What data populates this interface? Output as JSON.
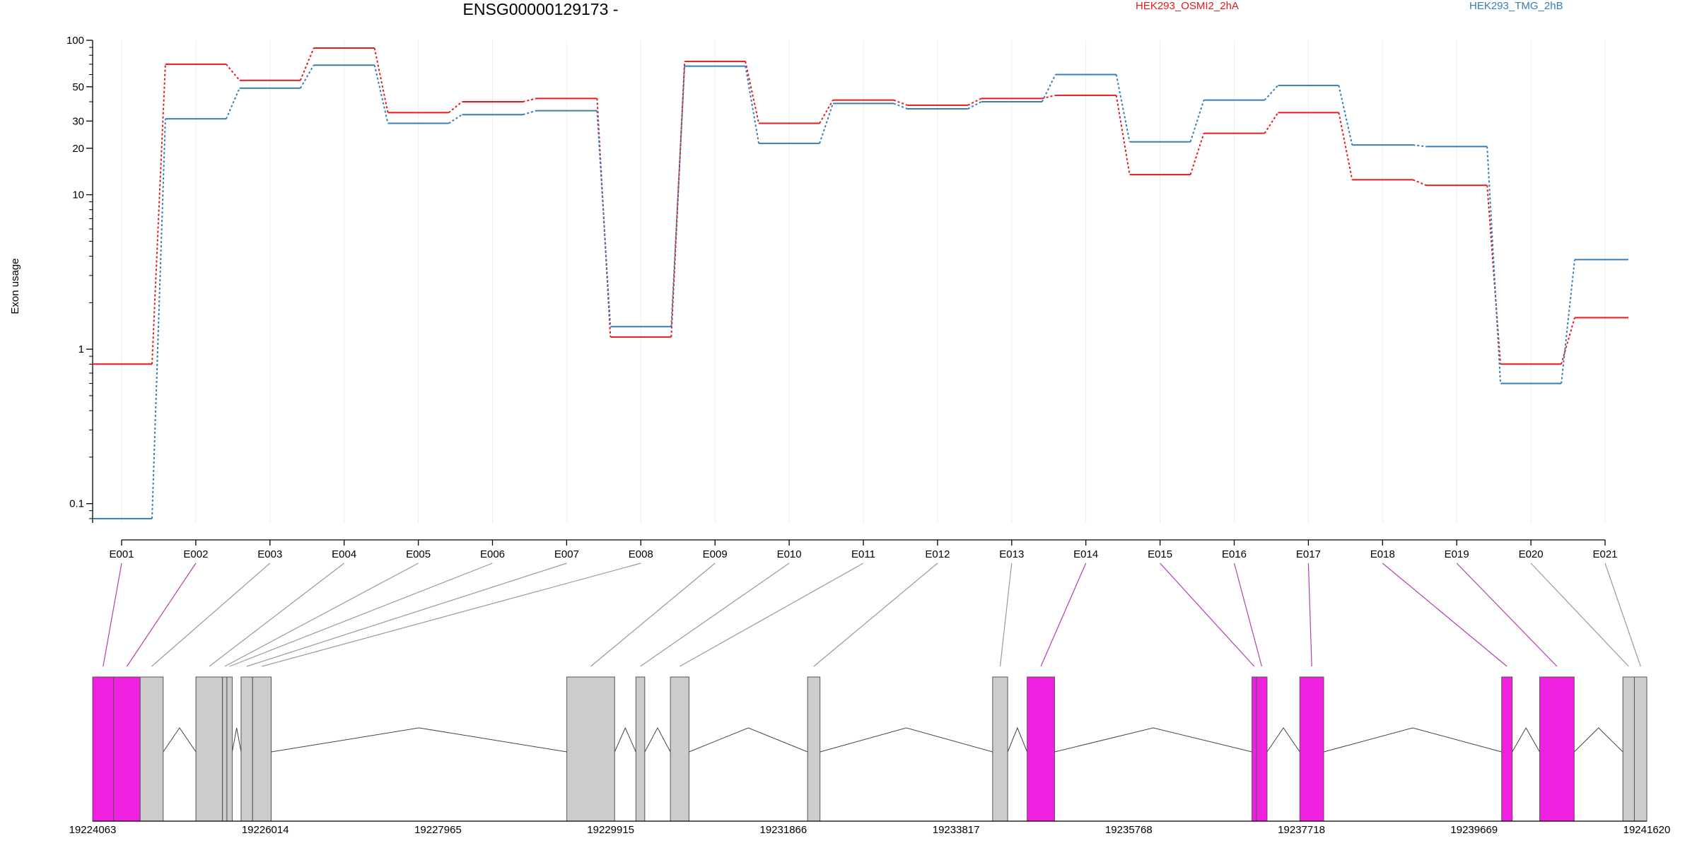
{
  "chart_data": {
    "type": "line",
    "title": "ENSG00000129173 -",
    "xlabel": "",
    "ylabel": "Exon usage",
    "y_scale": "log",
    "ylim": [
      0.075,
      100
    ],
    "yticks": [
      0.1,
      1,
      10,
      20,
      30,
      50,
      100
    ],
    "ytick_labels": [
      "0.1",
      "1",
      "10",
      "20",
      "30",
      "50",
      "100"
    ],
    "grid": true,
    "legend_position": "top",
    "categories": [
      "E001",
      "E002",
      "E003",
      "E004",
      "E005",
      "E006",
      "E007",
      "E008",
      "E009",
      "E010",
      "E011",
      "E012",
      "E013",
      "E014",
      "E015",
      "E016",
      "E017",
      "E018",
      "E019",
      "E020",
      "E021"
    ],
    "series": [
      {
        "name": "HEK293_OSMI2_2hA",
        "color": "#e41a1c",
        "values": [
          0.8,
          70,
          55,
          89,
          34,
          40,
          42,
          1.2,
          73,
          29,
          41,
          38,
          42,
          44,
          13.5,
          25,
          34,
          12.5,
          11.5,
          0.8,
          1.6
        ]
      },
      {
        "name": "HEK293_TMG_2hB",
        "color": "#377eb8",
        "values": [
          0.08,
          31,
          49,
          69,
          29,
          33,
          35,
          1.4,
          68,
          21.5,
          39,
          36,
          40,
          60,
          22,
          41,
          51,
          21,
          20.5,
          0.6,
          3.8
        ]
      }
    ],
    "gene_model": {
      "coordinates": [
        "19224063",
        "19226014",
        "19227965",
        "19229915",
        "19231866",
        "19233817",
        "19235768",
        "19237718",
        "19239669",
        "19241620"
      ],
      "highlight_color": "#f020e0",
      "exon_color": "#cccccc",
      "exons": [
        {
          "id": "E001",
          "start": 19224063,
          "end": 19224300,
          "highlight": true
        },
        {
          "id": "E002",
          "start": 19224300,
          "end": 19224600,
          "highlight": true
        },
        {
          "id": "E003",
          "start": 19224600,
          "end": 19224860,
          "highlight": false
        },
        {
          "id": "E004",
          "start": 19225230,
          "end": 19225530,
          "highlight": false
        },
        {
          "id": "E005",
          "start": 19225530,
          "end": 19225580,
          "highlight": false
        },
        {
          "id": "E006",
          "start": 19225580,
          "end": 19225640,
          "highlight": false
        },
        {
          "id": "E007",
          "start": 19225740,
          "end": 19225870,
          "highlight": false
        },
        {
          "id": "E008",
          "start": 19225870,
          "end": 19226080,
          "highlight": false
        },
        {
          "id": "E009",
          "start": 19229420,
          "end": 19229960,
          "highlight": false
        },
        {
          "id": "E010",
          "start": 19230200,
          "end": 19230300,
          "highlight": false
        },
        {
          "id": "E011",
          "start": 19230590,
          "end": 19230800,
          "highlight": false
        },
        {
          "id": "E012",
          "start": 19232140,
          "end": 19232280,
          "highlight": false
        },
        {
          "id": "E013",
          "start": 19234230,
          "end": 19234400,
          "highlight": false
        },
        {
          "id": "E014",
          "start": 19234620,
          "end": 19234930,
          "highlight": true
        },
        {
          "id": "E015",
          "start": 19237160,
          "end": 19237210,
          "highlight": true
        },
        {
          "id": "E016",
          "start": 19237210,
          "end": 19237330,
          "highlight": true
        },
        {
          "id": "E017",
          "start": 19237700,
          "end": 19237970,
          "highlight": true
        },
        {
          "id": "E018",
          "start": 19239980,
          "end": 19240100,
          "highlight": true
        },
        {
          "id": "E019",
          "start": 19240410,
          "end": 19240800,
          "highlight": true
        },
        {
          "id": "E020",
          "start": 19241350,
          "end": 19241480,
          "highlight": false
        },
        {
          "id": "E021",
          "start": 19241480,
          "end": 19241620,
          "highlight": false
        }
      ]
    }
  }
}
